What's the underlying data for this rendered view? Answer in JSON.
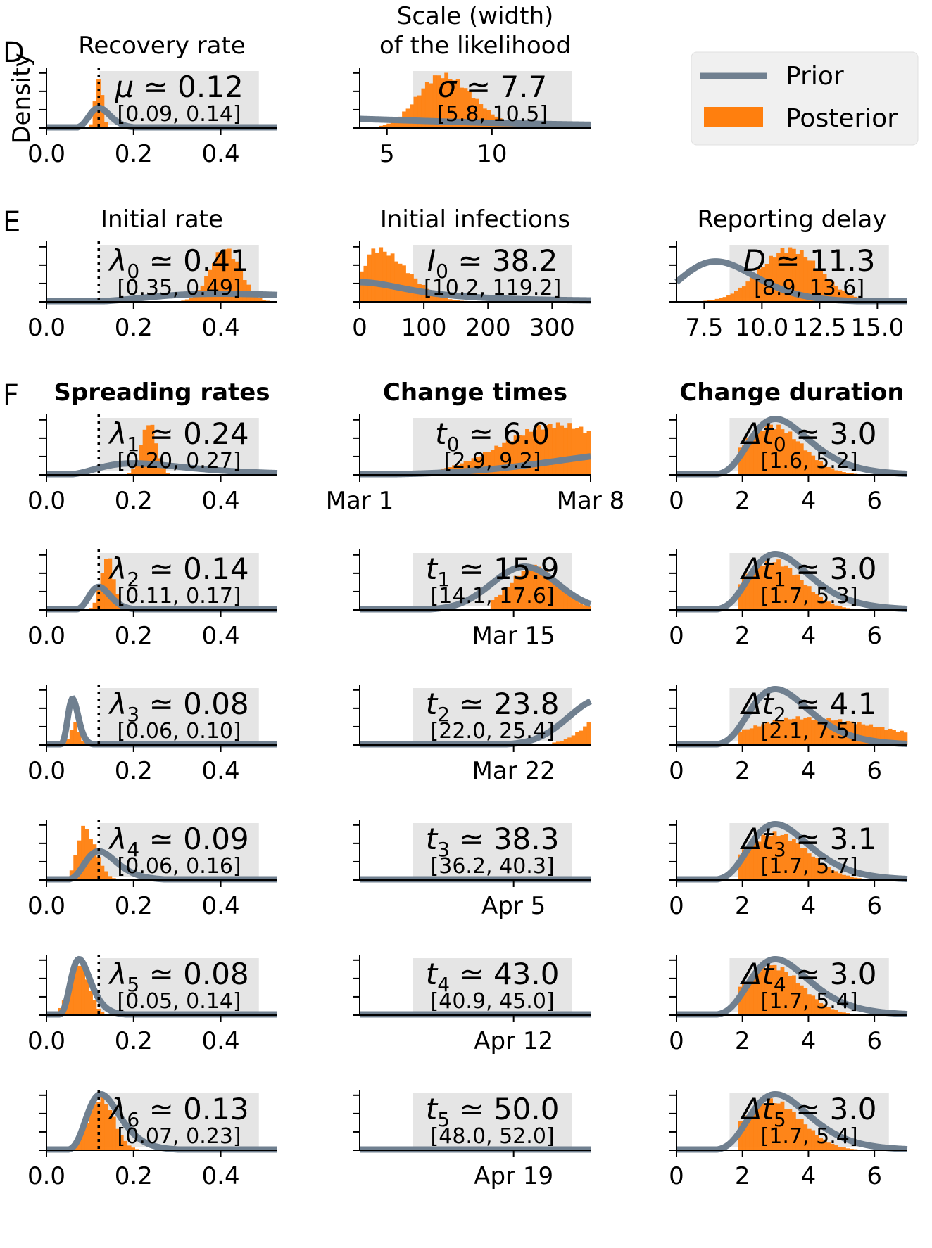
{
  "colors": {
    "prior": "#708090",
    "posterior": "#ff7f0e",
    "box": "#e5e5e5"
  },
  "legend": {
    "prior": "Prior",
    "posterior": "Posterior",
    "placement": "top-right"
  },
  "ylabel": "Density",
  "rows": [
    {
      "letter": "D",
      "panels": [
        {
          "title": [
            "Recovery rate"
          ],
          "sym": "μ",
          "sub": "",
          "median": "0.12",
          "ci": "[0.09, 0.14]",
          "xlim": [
            0,
            0.53
          ],
          "ticks": [
            0,
            0.2,
            0.4
          ],
          "tickLabels": [
            "0.0",
            "0.2",
            "0.4"
          ],
          "prior": {
            "dist": "lognorm",
            "mu": 0.12,
            "sd": 0.2,
            "scale": 0.35
          },
          "post": {
            "m": 0.12,
            "s": 0.008,
            "scale": 0.97
          },
          "vline": 0.12
        },
        {
          "title": [
            "Scale (width)",
            "of the likelihood"
          ],
          "sym": "σ",
          "sub": "",
          "median": "7.7",
          "ci": "[5.8, 10.5]",
          "xlim": [
            3.7,
            14.7
          ],
          "ticks": [
            5,
            10
          ],
          "tickLabels": [
            "5",
            "10"
          ],
          "prior": {
            "dist": "halfcauchy",
            "scale": 10,
            "h": 0.18
          },
          "post": {
            "m": 7.6,
            "s": 1.15,
            "scale": 0.97,
            "skew": 0.3
          }
        }
      ]
    },
    {
      "letter": "E",
      "panels": [
        {
          "title": [
            "Initial rate"
          ],
          "sym": "λ",
          "sub": "0",
          "median": "0.41",
          "ci": "[0.35, 0.49]",
          "xlim": [
            0,
            0.53
          ],
          "ticks": [
            0,
            0.2,
            0.4
          ],
          "tickLabels": [
            "0.0",
            "0.2",
            "0.4"
          ],
          "prior": {
            "dist": "lognorm",
            "mu": 0.4,
            "sd": 0.5,
            "scale": 0.14
          },
          "post": {
            "m": 0.41,
            "s": 0.035,
            "scale": 0.97
          },
          "vline": 0.12
        },
        {
          "title": [
            "Initial infections"
          ],
          "sym": "I",
          "sub": "0",
          "median": "38.2",
          "ci": "[10.2, 119.2]",
          "xlim": [
            0,
            360
          ],
          "ticks": [
            0,
            100,
            200,
            300
          ],
          "tickLabels": [
            "0",
            "100",
            "200",
            "300"
          ],
          "prior": {
            "dist": "halfcauchy",
            "scale": 100,
            "h": 0.34
          },
          "post": {
            "m": 25,
            "s": 20,
            "scale": 0.97,
            "skew": 1.4,
            "lo": 0
          }
        },
        {
          "title": [
            "Reporting delay"
          ],
          "sym": "D",
          "sub": "",
          "median": "11.3",
          "ci": "[8.9, 13.6]",
          "xlim": [
            6.3,
            16.3
          ],
          "ticks": [
            7.5,
            10,
            12.5,
            15
          ],
          "tickLabels": [
            "7.5",
            "10.0",
            "12.5",
            "15.0"
          ],
          "prior": {
            "dist": "lognorm",
            "mu": 8,
            "sd": 0.2,
            "scale": 0.7
          },
          "post": {
            "m": 11.2,
            "s": 1.3,
            "scale": 0.97
          }
        }
      ]
    },
    {
      "letter": "F",
      "panels": [
        {
          "title": [
            "Spreading rates"
          ],
          "bold": true,
          "sym": "λ",
          "sub": "1",
          "median": "0.24",
          "ci": "[0.20, 0.27]",
          "xlim": [
            0,
            0.53
          ],
          "ticks": [
            0,
            0.2,
            0.4
          ],
          "tickLabels": [
            "0.0",
            "0.2",
            "0.4"
          ],
          "prior": {
            "dist": "lognorm",
            "mu": 0.2,
            "sd": 0.5,
            "scale": 0.2
          },
          "post": {
            "m": 0.235,
            "s": 0.017,
            "scale": 0.97
          },
          "vline": 0.12
        },
        {
          "title": [
            "Change times"
          ],
          "bold": true,
          "sym": "t",
          "sub": "0",
          "median": "6.0",
          "ci": "[2.9, 9.2]",
          "xlim": [
            0,
            7
          ],
          "ticks": [
            0,
            7
          ],
          "tickLabels": [
            "Mar 1",
            "Mar 8"
          ],
          "prior": {
            "dist": "normal",
            "mu": 9,
            "sd": 3,
            "scale": 0.4
          },
          "post": {
            "m": 6,
            "s": 1.7,
            "scale": 0.92,
            "lo": 2.2
          }
        },
        {
          "title": [
            "Change duration"
          ],
          "bold": true,
          "sym": "Δt",
          "sub": "0",
          "median": "3.0",
          "ci": "[1.6, 5.2]",
          "xlim": [
            0,
            7
          ],
          "ticks": [
            0,
            2,
            4,
            6
          ],
          "tickLabels": [
            "0",
            "2",
            "4",
            "6"
          ],
          "prior": {
            "dist": "lognorm",
            "mu": 3,
            "sd": 0.3,
            "scale": 0.97
          },
          "post": {
            "m": 2.9,
            "s": 0.9,
            "scale": 0.9,
            "lo": 1.9
          }
        }
      ]
    },
    {
      "letter": "",
      "panels": [
        {
          "title": [],
          "sym": "λ",
          "sub": "2",
          "median": "0.14",
          "ci": "[0.11, 0.17]",
          "xlim": [
            0,
            0.53
          ],
          "ticks": [
            0,
            0.2,
            0.4
          ],
          "tickLabels": [
            "0.0",
            "0.2",
            "0.4"
          ],
          "prior": {
            "dist": "lognorm",
            "mu": 0.12,
            "sd": 0.2,
            "scale": 0.4
          },
          "post": {
            "m": 0.14,
            "s": 0.015,
            "scale": 0.97
          },
          "vline": 0.12
        },
        {
          "title": [],
          "sym": "t",
          "sub": "1",
          "median": "15.9",
          "ci": "[14.1, 17.6]",
          "xlim": [
            0,
            21
          ],
          "ticks": [
            14
          ],
          "tickLabels": [
            "Mar 15"
          ],
          "prior": {
            "dist": "normal",
            "mu": 15,
            "sd": 3,
            "scale": 0.75
          },
          "post": {
            "m": 15.9,
            "s": 2.2,
            "scale": 0.8,
            "lo": 11.8
          }
        },
        {
          "title": [],
          "sym": "Δt",
          "sub": "1",
          "median": "3.0",
          "ci": "[1.7, 5.3]",
          "xlim": [
            0,
            7
          ],
          "ticks": [
            0,
            2,
            4,
            6
          ],
          "tickLabels": [
            "0",
            "2",
            "4",
            "6"
          ],
          "prior": {
            "dist": "lognorm",
            "mu": 3,
            "sd": 0.3,
            "scale": 0.97
          },
          "post": {
            "m": 2.9,
            "s": 0.9,
            "scale": 0.9,
            "lo": 1.9
          }
        }
      ]
    },
    {
      "letter": "",
      "panels": [
        {
          "title": [],
          "sym": "λ",
          "sub": "3",
          "median": "0.08",
          "ci": "[0.06, 0.10]",
          "xlim": [
            0,
            0.53
          ],
          "ticks": [
            0,
            0.2,
            0.4
          ],
          "tickLabels": [
            "0.0",
            "0.2",
            "0.4"
          ],
          "prior": {
            "dist": "lognorm",
            "mu": 0.06,
            "sd": 0.2,
            "scale": 0.8
          },
          "post": {
            "m": 0.065,
            "s": 0.01,
            "scale": 0.4
          },
          "vline": 0.12
        },
        {
          "title": [],
          "sym": "t",
          "sub": "2",
          "median": "23.8",
          "ci": "[22.0, 25.4]",
          "xlim": [
            0,
            21
          ],
          "ticks": [
            14
          ],
          "tickLabels": [
            "Mar 22"
          ],
          "prior": {
            "dist": "normal",
            "mu": 22,
            "sd": 3,
            "scale": 0.8
          },
          "post": {
            "m": 24,
            "s": 2.6,
            "scale": 0.85,
            "lo": 17.5
          }
        },
        {
          "title": [],
          "sym": "Δt",
          "sub": "2",
          "median": "4.1",
          "ci": "[2.1, 7.5]",
          "xlim": [
            0,
            7
          ],
          "ticks": [
            0,
            2,
            4,
            6
          ],
          "tickLabels": [
            "0",
            "2",
            "4",
            "6"
          ],
          "prior": {
            "dist": "lognorm",
            "mu": 3,
            "sd": 0.3,
            "scale": 0.97
          },
          "post": {
            "m": 3.8,
            "s": 1.6,
            "scale": 0.5,
            "lo": 1.9,
            "skew": 0.6
          }
        }
      ]
    },
    {
      "letter": "",
      "panels": [
        {
          "title": [],
          "sym": "λ",
          "sub": "4",
          "median": "0.09",
          "ci": "[0.06, 0.16]",
          "xlim": [
            0,
            0.53
          ],
          "ticks": [
            0,
            0.2,
            0.4
          ],
          "tickLabels": [
            "0.0",
            "0.2",
            "0.4"
          ],
          "prior": {
            "dist": "lognorm",
            "mu": 0.12,
            "sd": 0.3,
            "scale": 0.5
          },
          "post": {
            "m": 0.085,
            "s": 0.015,
            "scale": 0.97,
            "skew": 0.8
          },
          "vline": 0.12
        },
        {
          "title": [],
          "sym": "t",
          "sub": "3",
          "median": "38.3",
          "ci": "[36.2, 40.3]",
          "xlim": [
            0,
            21
          ],
          "ticks": [
            14
          ],
          "tickLabels": [
            "Apr 5"
          ],
          "prior": {
            "dist": "normal",
            "mu": 36,
            "sd": 3,
            "scale": 0.97
          },
          "post": {
            "m": 38.2,
            "s": 2.2,
            "scale": 0.8,
            "lo": 31.5
          }
        },
        {
          "title": [],
          "sym": "Δt",
          "sub": "3",
          "median": "3.1",
          "ci": "[1.7, 5.7]",
          "xlim": [
            0,
            7
          ],
          "ticks": [
            0,
            2,
            4,
            6
          ],
          "tickLabels": [
            "0",
            "2",
            "4",
            "6"
          ],
          "prior": {
            "dist": "lognorm",
            "mu": 3,
            "sd": 0.3,
            "scale": 0.97
          },
          "post": {
            "m": 3,
            "s": 1,
            "scale": 0.85,
            "lo": 1.9
          }
        }
      ]
    },
    {
      "letter": "",
      "panels": [
        {
          "title": [],
          "sym": "λ",
          "sub": "5",
          "median": "0.08",
          "ci": "[0.05, 0.14]",
          "xlim": [
            0,
            0.53
          ],
          "ticks": [
            0,
            0.2,
            0.4
          ],
          "tickLabels": [
            "0.0",
            "0.2",
            "0.4"
          ],
          "prior": {
            "dist": "lognorm",
            "mu": 0.075,
            "sd": 0.3,
            "scale": 0.97
          },
          "post": {
            "m": 0.075,
            "s": 0.022,
            "scale": 0.95
          },
          "vline": 0.12
        },
        {
          "title": [],
          "sym": "t",
          "sub": "4",
          "median": "43.0",
          "ci": "[40.9, 45.0]",
          "xlim": [
            0,
            21
          ],
          "ticks": [
            14
          ],
          "tickLabels": [
            "Apr 12"
          ],
          "prior": {
            "dist": "normal",
            "mu": 43,
            "sd": 3,
            "scale": 0.97
          },
          "post": {
            "m": 43,
            "s": 3,
            "scale": 0.97,
            "lo": 36.5
          }
        },
        {
          "title": [],
          "sym": "Δt",
          "sub": "4",
          "median": "3.0",
          "ci": "[1.7, 5.4]",
          "xlim": [
            0,
            7
          ],
          "ticks": [
            0,
            2,
            4,
            6
          ],
          "tickLabels": [
            "0",
            "2",
            "4",
            "6"
          ],
          "prior": {
            "dist": "lognorm",
            "mu": 3,
            "sd": 0.3,
            "scale": 0.97
          },
          "post": {
            "m": 2.9,
            "s": 0.9,
            "scale": 0.9,
            "lo": 1.9
          }
        }
      ]
    },
    {
      "letter": "",
      "panels": [
        {
          "title": [],
          "sym": "λ",
          "sub": "6",
          "median": "0.13",
          "ci": "[0.07, 0.23]",
          "xlim": [
            0,
            0.53
          ],
          "ticks": [
            0,
            0.2,
            0.4
          ],
          "tickLabels": [
            "0.0",
            "0.2",
            "0.4"
          ],
          "prior": {
            "dist": "lognorm",
            "mu": 0.125,
            "sd": 0.3,
            "scale": 0.97
          },
          "post": {
            "m": 0.125,
            "s": 0.03,
            "scale": 0.95
          },
          "vline": 0.12
        },
        {
          "title": [],
          "sym": "t",
          "sub": "5",
          "median": "50.0",
          "ci": "[48.0, 52.0]",
          "xlim": [
            0,
            21
          ],
          "ticks": [
            14
          ],
          "tickLabels": [
            "Apr 19"
          ],
          "prior": {
            "dist": "normal",
            "mu": 50,
            "sd": 3,
            "scale": 0.97
          },
          "post": {
            "m": 50,
            "s": 3,
            "scale": 0.97,
            "lo": 43.5
          }
        },
        {
          "title": [],
          "sym": "Δt",
          "sub": "5",
          "median": "3.0",
          "ci": "[1.7, 5.4]",
          "xlim": [
            0,
            7
          ],
          "ticks": [
            0,
            2,
            4,
            6
          ],
          "tickLabels": [
            "0",
            "2",
            "4",
            "6"
          ],
          "prior": {
            "dist": "lognorm",
            "mu": 3,
            "sd": 0.3,
            "scale": 0.97
          },
          "post": {
            "m": 2.9,
            "s": 0.9,
            "scale": 0.9,
            "lo": 1.9
          }
        }
      ]
    }
  ],
  "chart_data": {
    "type": "histogram-grid",
    "legend": [
      "Prior",
      "Posterior"
    ],
    "parameters": [
      {
        "name": "Recovery rate",
        "symbol": "μ",
        "median": 0.12,
        "ci": [
          0.09,
          0.14
        ]
      },
      {
        "name": "Scale (width) of the likelihood",
        "symbol": "σ",
        "median": 7.7,
        "ci": [
          5.8,
          10.5
        ]
      },
      {
        "name": "Initial rate",
        "symbol": "λ0",
        "median": 0.41,
        "ci": [
          0.35,
          0.49
        ]
      },
      {
        "name": "Initial infections",
        "symbol": "I0",
        "median": 38.2,
        "ci": [
          10.2,
          119.2
        ]
      },
      {
        "name": "Reporting delay",
        "symbol": "D",
        "median": 11.3,
        "ci": [
          8.9,
          13.6
        ]
      },
      {
        "symbol": "λ1",
        "median": 0.24,
        "ci": [
          0.2,
          0.27
        ]
      },
      {
        "symbol": "λ2",
        "median": 0.14,
        "ci": [
          0.11,
          0.17
        ]
      },
      {
        "symbol": "λ3",
        "median": 0.08,
        "ci": [
          0.06,
          0.1
        ]
      },
      {
        "symbol": "λ4",
        "median": 0.09,
        "ci": [
          0.06,
          0.16
        ]
      },
      {
        "symbol": "λ5",
        "median": 0.08,
        "ci": [
          0.05,
          0.14
        ]
      },
      {
        "symbol": "λ6",
        "median": 0.13,
        "ci": [
          0.07,
          0.23
        ]
      },
      {
        "symbol": "t0",
        "median": 6.0,
        "ci": [
          2.9,
          9.2
        ]
      },
      {
        "symbol": "t1",
        "median": 15.9,
        "ci": [
          14.1,
          17.6
        ]
      },
      {
        "symbol": "t2",
        "median": 23.8,
        "ci": [
          22.0,
          25.4
        ]
      },
      {
        "symbol": "t3",
        "median": 38.3,
        "ci": [
          36.2,
          40.3
        ]
      },
      {
        "symbol": "t4",
        "median": 43.0,
        "ci": [
          40.9,
          45.0
        ]
      },
      {
        "symbol": "t5",
        "median": 50.0,
        "ci": [
          48.0,
          52.0
        ]
      },
      {
        "symbol": "Δt0",
        "median": 3.0,
        "ci": [
          1.6,
          5.2
        ]
      },
      {
        "symbol": "Δt1",
        "median": 3.0,
        "ci": [
          1.7,
          5.3
        ]
      },
      {
        "symbol": "Δt2",
        "median": 4.1,
        "ci": [
          2.1,
          7.5
        ]
      },
      {
        "symbol": "Δt3",
        "median": 3.1,
        "ci": [
          1.7,
          5.7
        ]
      },
      {
        "symbol": "Δt4",
        "median": 3.0,
        "ci": [
          1.7,
          5.4
        ]
      },
      {
        "symbol": "Δt5",
        "median": 3.0,
        "ci": [
          1.7,
          5.4
        ]
      }
    ]
  }
}
